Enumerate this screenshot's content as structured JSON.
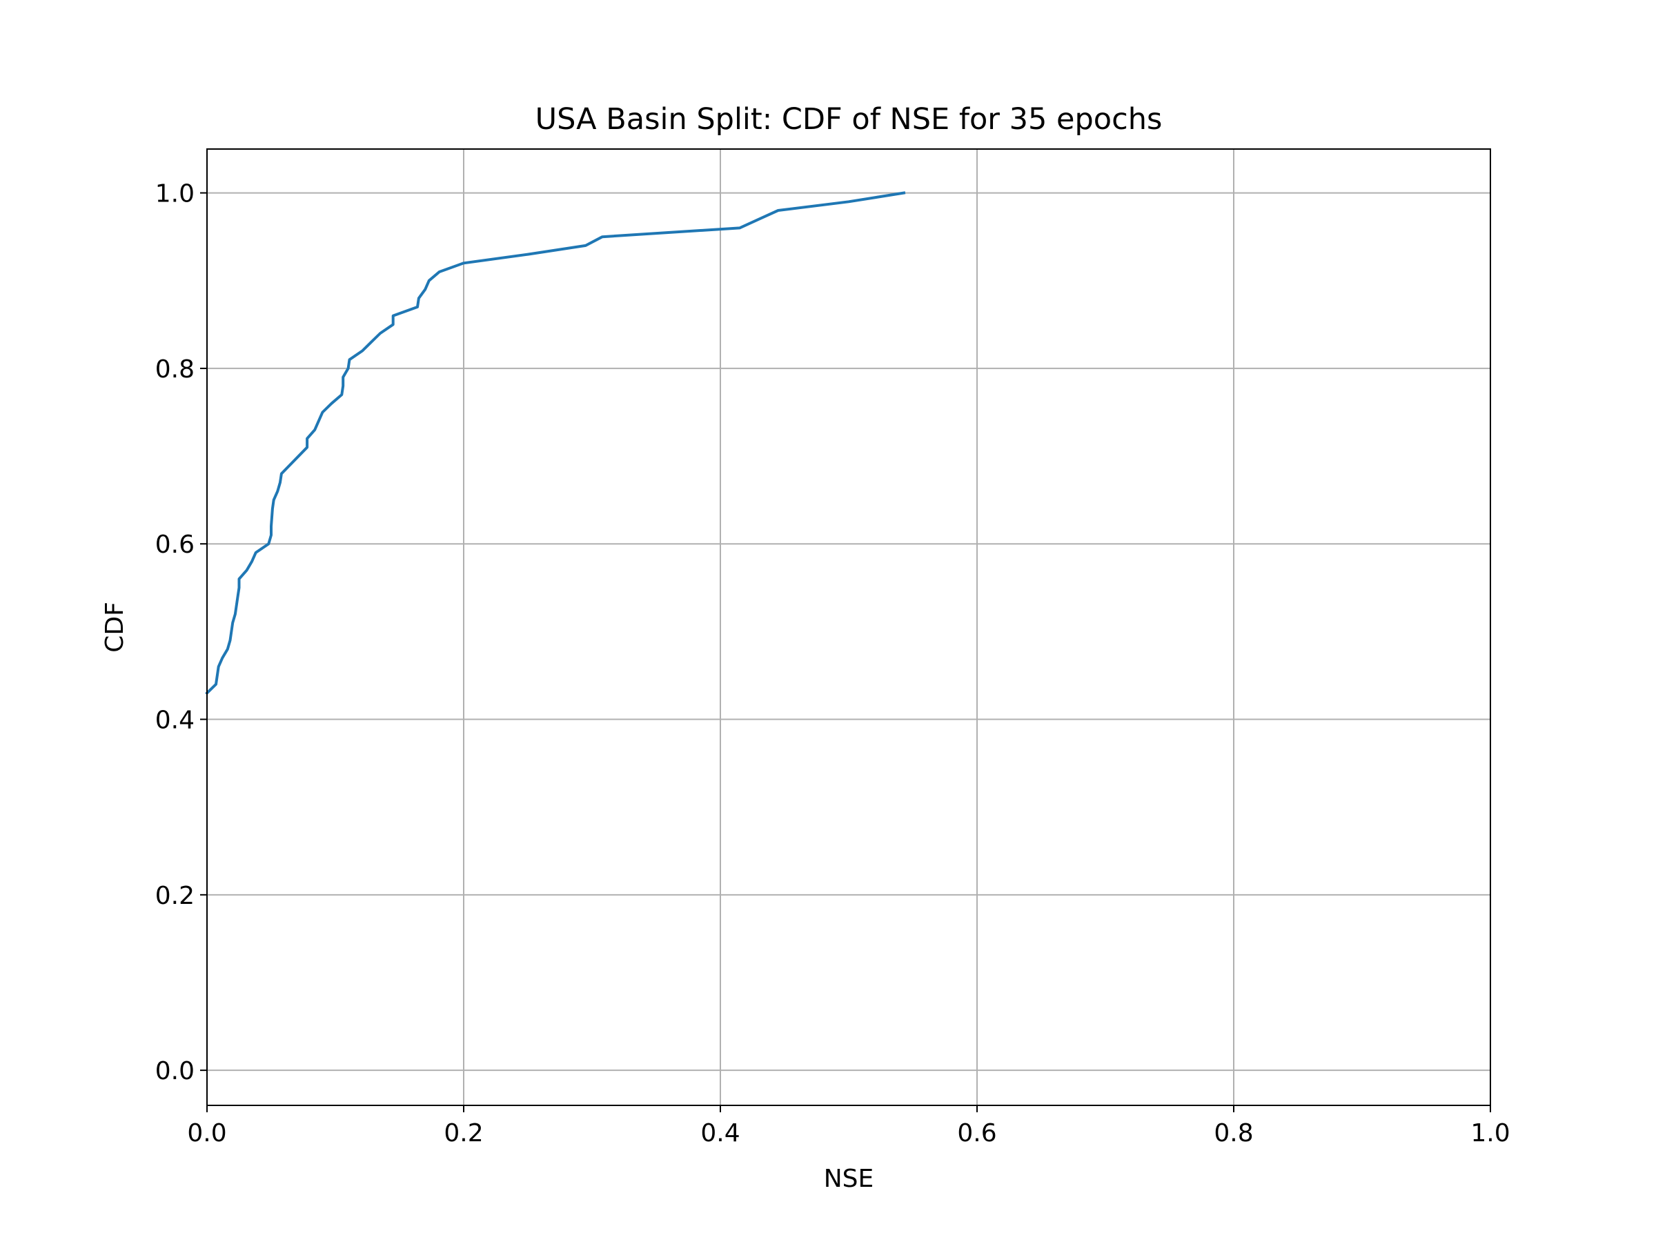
{
  "chart_data": {
    "type": "line",
    "title": "USA Basin Split: CDF of NSE for 35 epochs",
    "xlabel": "NSE",
    "ylabel": "CDF",
    "xlim": [
      0.0,
      1.0
    ],
    "ylim": [
      -0.04,
      1.05
    ],
    "xticks": [
      "0.0",
      "0.2",
      "0.4",
      "0.6",
      "0.8",
      "1.0"
    ],
    "yticks": [
      "0.0",
      "0.2",
      "0.4",
      "0.6",
      "0.8",
      "1.0"
    ],
    "grid": true,
    "series_color": "#1f77b4",
    "series": [
      {
        "x": [
          0.0,
          0.007,
          0.009,
          0.012,
          0.016,
          0.018,
          0.02,
          0.022,
          0.024,
          0.025,
          0.025,
          0.031,
          0.035,
          0.038,
          0.048,
          0.05,
          0.05,
          0.051,
          0.052,
          0.055,
          0.057,
          0.058,
          0.078,
          0.078,
          0.084,
          0.087,
          0.09,
          0.097,
          0.105,
          0.106,
          0.106,
          0.11,
          0.111,
          0.121,
          0.128,
          0.135,
          0.145,
          0.145,
          0.164,
          0.165,
          0.17,
          0.173,
          0.181,
          0.2,
          0.25,
          0.295,
          0.308,
          0.415,
          0.43,
          0.445,
          0.5,
          0.543
        ],
        "y": [
          0.43,
          0.44,
          0.46,
          0.47,
          0.48,
          0.49,
          0.51,
          0.52,
          0.54,
          0.55,
          0.56,
          0.57,
          0.58,
          0.59,
          0.6,
          0.61,
          0.62,
          0.64,
          0.65,
          0.66,
          0.67,
          0.68,
          0.71,
          0.72,
          0.73,
          0.74,
          0.75,
          0.76,
          0.77,
          0.78,
          0.79,
          0.8,
          0.81,
          0.82,
          0.83,
          0.84,
          0.85,
          0.86,
          0.87,
          0.88,
          0.89,
          0.9,
          0.91,
          0.92,
          0.93,
          0.94,
          0.95,
          0.96,
          0.97,
          0.98,
          0.99,
          1.0
        ]
      }
    ]
  }
}
